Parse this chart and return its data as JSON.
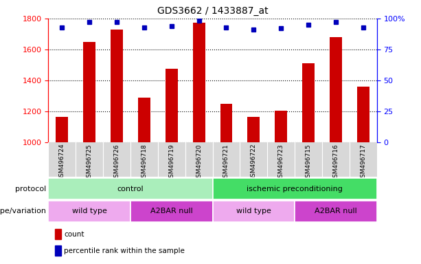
{
  "title": "GDS3662 / 1433887_at",
  "samples": [
    "GSM496724",
    "GSM496725",
    "GSM496726",
    "GSM496718",
    "GSM496719",
    "GSM496720",
    "GSM496721",
    "GSM496722",
    "GSM496723",
    "GSM496715",
    "GSM496716",
    "GSM496717"
  ],
  "counts": [
    1165,
    1650,
    1730,
    1290,
    1475,
    1775,
    1250,
    1165,
    1205,
    1510,
    1680,
    1360
  ],
  "percentile_ranks": [
    93,
    97,
    97,
    93,
    94,
    98,
    93,
    91,
    92,
    95,
    97,
    93
  ],
  "ylim_left": [
    1000,
    1800
  ],
  "ylim_right": [
    0,
    100
  ],
  "yticks_left": [
    1000,
    1200,
    1400,
    1600,
    1800
  ],
  "yticks_right": [
    0,
    25,
    50,
    75,
    100
  ],
  "bar_color": "#cc0000",
  "dot_color": "#0000bb",
  "bar_baseline": 1000,
  "protocol_groups": [
    {
      "label": "control",
      "start": 0,
      "end": 6,
      "color": "#aaeebb"
    },
    {
      "label": "ischemic preconditioning",
      "start": 6,
      "end": 12,
      "color": "#44dd66"
    }
  ],
  "genotype_groups": [
    {
      "label": "wild type",
      "start": 0,
      "end": 3,
      "color": "#eeaaee"
    },
    {
      "label": "A2BAR null",
      "start": 3,
      "end": 6,
      "color": "#cc44cc"
    },
    {
      "label": "wild type",
      "start": 6,
      "end": 9,
      "color": "#eeaaee"
    },
    {
      "label": "A2BAR null",
      "start": 9,
      "end": 12,
      "color": "#cc44cc"
    }
  ],
  "protocol_label": "protocol",
  "genotype_label": "genotype/variation",
  "legend_count_label": "count",
  "legend_percentile_label": "percentile rank within the sample",
  "xtick_bg_color": "#d8d8d8",
  "fig_bg_color": "#ffffff"
}
